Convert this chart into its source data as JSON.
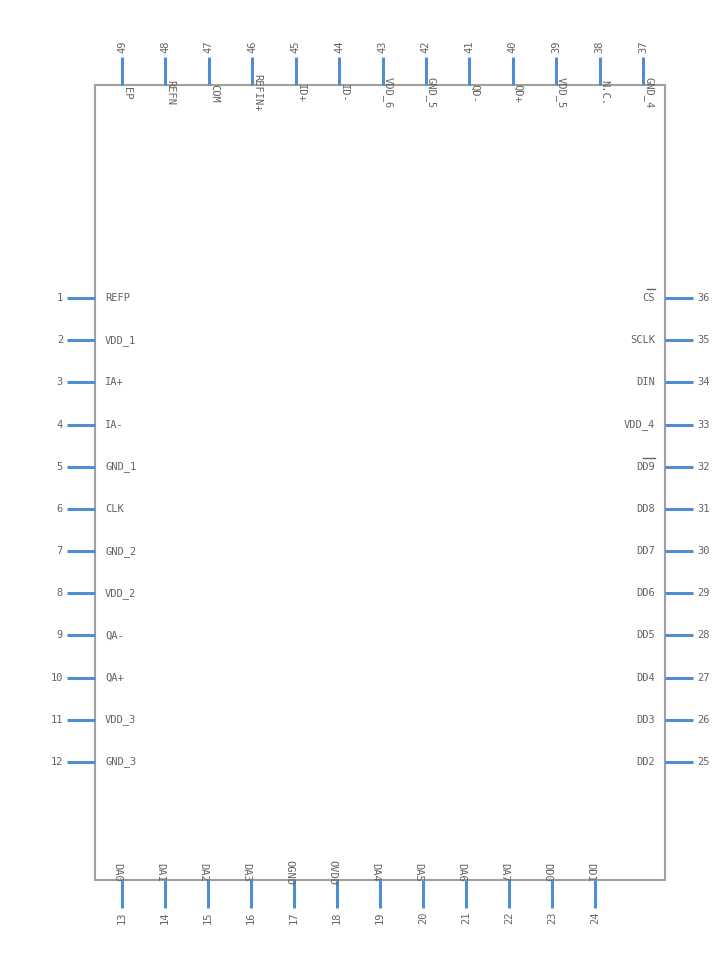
{
  "box_color": "#a0a0a0",
  "pin_color": "#4d8fd1",
  "text_color": "#646464",
  "num_color": "#646464",
  "bg_color": "#ffffff",
  "left_pins": [
    {
      "num": 1,
      "label": "REFP",
      "overbar": false
    },
    {
      "num": 2,
      "label": "VDD_1",
      "overbar": false
    },
    {
      "num": 3,
      "label": "IA+",
      "overbar": false
    },
    {
      "num": 4,
      "label": "IA-",
      "overbar": false
    },
    {
      "num": 5,
      "label": "GND_1",
      "overbar": false
    },
    {
      "num": 6,
      "label": "CLK",
      "overbar": false
    },
    {
      "num": 7,
      "label": "GND_2",
      "overbar": false
    },
    {
      "num": 8,
      "label": "VDD_2",
      "overbar": false
    },
    {
      "num": 9,
      "label": "QA-",
      "overbar": false
    },
    {
      "num": 10,
      "label": "QA+",
      "overbar": false
    },
    {
      "num": 11,
      "label": "VDD_3",
      "overbar": false
    },
    {
      "num": 12,
      "label": "GND_3",
      "overbar": false
    }
  ],
  "right_pins": [
    {
      "num": 36,
      "label": "CS",
      "overbar": true
    },
    {
      "num": 35,
      "label": "SCLK",
      "overbar": false
    },
    {
      "num": 34,
      "label": "DIN",
      "overbar": false
    },
    {
      "num": 33,
      "label": "VDD_4",
      "overbar": false
    },
    {
      "num": 32,
      "label": "DD9",
      "overbar": true
    },
    {
      "num": 31,
      "label": "DD8",
      "overbar": false
    },
    {
      "num": 30,
      "label": "DD7",
      "overbar": false
    },
    {
      "num": 29,
      "label": "DD6",
      "overbar": false
    },
    {
      "num": 28,
      "label": "DD5",
      "overbar": false
    },
    {
      "num": 27,
      "label": "DD4",
      "overbar": false
    },
    {
      "num": 26,
      "label": "DD3",
      "overbar": false
    },
    {
      "num": 25,
      "label": "DD2",
      "overbar": false
    }
  ],
  "top_pins": [
    {
      "num": 49,
      "label": "EP",
      "overbar": false
    },
    {
      "num": 48,
      "label": "REFN",
      "overbar": false
    },
    {
      "num": 47,
      "label": "COM",
      "overbar": false
    },
    {
      "num": 46,
      "label": "REFIN+",
      "overbar": false
    },
    {
      "num": 45,
      "label": "ID+",
      "overbar": false
    },
    {
      "num": 44,
      "label": "ID-",
      "overbar": false
    },
    {
      "num": 43,
      "label": "VDD_6",
      "overbar": false
    },
    {
      "num": 42,
      "label": "GND_5",
      "overbar": true
    },
    {
      "num": 41,
      "label": "QD-",
      "overbar": true
    },
    {
      "num": 40,
      "label": "QD+",
      "overbar": false
    },
    {
      "num": 39,
      "label": "VDD_5",
      "overbar": false
    },
    {
      "num": 38,
      "label": "N.C.",
      "overbar": false
    },
    {
      "num": 37,
      "label": "GND_4",
      "overbar": true
    }
  ],
  "bottom_pins": [
    {
      "num": 13,
      "label": "DA0",
      "overbar": false
    },
    {
      "num": 14,
      "label": "DA1",
      "overbar": false
    },
    {
      "num": 15,
      "label": "DA2",
      "overbar": false
    },
    {
      "num": 16,
      "label": "DA3",
      "overbar": false
    },
    {
      "num": 17,
      "label": "OGND",
      "overbar": false
    },
    {
      "num": 18,
      "label": "OVDD",
      "overbar": false
    },
    {
      "num": 19,
      "label": "DA4",
      "overbar": false
    },
    {
      "num": 20,
      "label": "DA5",
      "overbar": false
    },
    {
      "num": 21,
      "label": "DA6",
      "overbar": false
    },
    {
      "num": 22,
      "label": "DA7",
      "overbar": false
    },
    {
      "num": 23,
      "label": "DD0",
      "overbar": false
    },
    {
      "num": 24,
      "label": "DD1",
      "overbar": false
    }
  ]
}
